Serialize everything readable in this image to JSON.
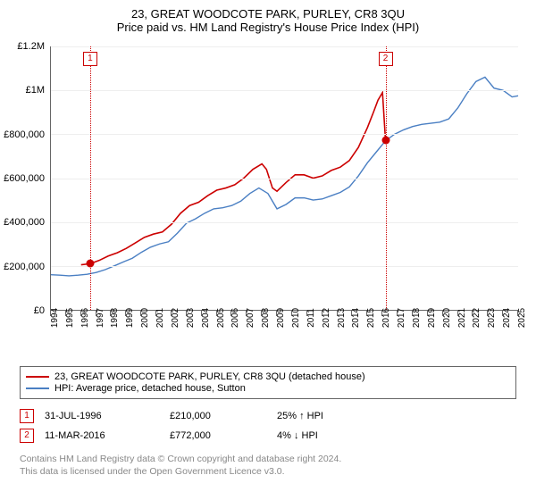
{
  "title": "23, GREAT WOODCOTE PARK, PURLEY, CR8 3QU",
  "subtitle": "Price paid vs. HM Land Registry's House Price Index (HPI)",
  "chart": {
    "type": "line",
    "background_color": "#ffffff",
    "grid_color": "#eeeeee",
    "axis_color": "#666666",
    "x": {
      "min": 1994,
      "max": 2025,
      "tick_step": 1,
      "label_fontsize": 10
    },
    "y": {
      "min": 0,
      "max": 1200000,
      "tick_step": 200000,
      "labels": [
        "£0",
        "£200,000",
        "£400,000",
        "£600,000",
        "£800,000",
        "£1M",
        "£1.2M"
      ],
      "label_fontsize": 11
    },
    "series": [
      {
        "name": "23, GREAT WOODCOTE PARK, PURLEY, CR8 3QU (detached house)",
        "color": "#cc0000",
        "line_width": 1.6,
        "points": [
          [
            1996.0,
            205000
          ],
          [
            1996.6,
            210000
          ],
          [
            1997.2,
            225000
          ],
          [
            1997.8,
            245000
          ],
          [
            1998.4,
            260000
          ],
          [
            1999.0,
            280000
          ],
          [
            1999.6,
            305000
          ],
          [
            2000.2,
            330000
          ],
          [
            2000.8,
            345000
          ],
          [
            2001.4,
            355000
          ],
          [
            2002.0,
            390000
          ],
          [
            2002.6,
            440000
          ],
          [
            2003.2,
            475000
          ],
          [
            2003.8,
            490000
          ],
          [
            2004.4,
            520000
          ],
          [
            2005.0,
            545000
          ],
          [
            2005.6,
            555000
          ],
          [
            2006.2,
            570000
          ],
          [
            2006.8,
            600000
          ],
          [
            2007.4,
            640000
          ],
          [
            2008.0,
            665000
          ],
          [
            2008.3,
            640000
          ],
          [
            2008.7,
            555000
          ],
          [
            2009.0,
            540000
          ],
          [
            2009.6,
            580000
          ],
          [
            2010.2,
            615000
          ],
          [
            2010.8,
            615000
          ],
          [
            2011.4,
            600000
          ],
          [
            2012.0,
            610000
          ],
          [
            2012.6,
            635000
          ],
          [
            2013.2,
            650000
          ],
          [
            2013.8,
            680000
          ],
          [
            2014.4,
            740000
          ],
          [
            2015.0,
            830000
          ],
          [
            2015.4,
            900000
          ],
          [
            2015.7,
            955000
          ],
          [
            2016.0,
            990000
          ],
          [
            2016.2,
            772000
          ]
        ]
      },
      {
        "name": "HPI: Average price, detached house, Sutton",
        "color": "#4a7fc3",
        "line_width": 1.4,
        "points": [
          [
            1994.0,
            160000
          ],
          [
            1994.6,
            158000
          ],
          [
            1995.2,
            155000
          ],
          [
            1995.8,
            158000
          ],
          [
            1996.4,
            162000
          ],
          [
            1997.0,
            170000
          ],
          [
            1997.6,
            183000
          ],
          [
            1998.2,
            200000
          ],
          [
            1998.8,
            218000
          ],
          [
            1999.4,
            235000
          ],
          [
            2000.0,
            262000
          ],
          [
            2000.6,
            285000
          ],
          [
            2001.2,
            300000
          ],
          [
            2001.8,
            310000
          ],
          [
            2002.4,
            350000
          ],
          [
            2003.0,
            395000
          ],
          [
            2003.6,
            415000
          ],
          [
            2004.2,
            440000
          ],
          [
            2004.8,
            460000
          ],
          [
            2005.4,
            465000
          ],
          [
            2006.0,
            475000
          ],
          [
            2006.6,
            495000
          ],
          [
            2007.2,
            530000
          ],
          [
            2007.8,
            555000
          ],
          [
            2008.4,
            530000
          ],
          [
            2009.0,
            460000
          ],
          [
            2009.6,
            480000
          ],
          [
            2010.2,
            510000
          ],
          [
            2010.8,
            510000
          ],
          [
            2011.4,
            500000
          ],
          [
            2012.0,
            505000
          ],
          [
            2012.6,
            520000
          ],
          [
            2013.2,
            535000
          ],
          [
            2013.8,
            560000
          ],
          [
            2014.4,
            610000
          ],
          [
            2015.0,
            670000
          ],
          [
            2015.6,
            720000
          ],
          [
            2016.2,
            770000
          ],
          [
            2016.8,
            800000
          ],
          [
            2017.4,
            820000
          ],
          [
            2018.0,
            835000
          ],
          [
            2018.6,
            845000
          ],
          [
            2019.2,
            850000
          ],
          [
            2019.8,
            855000
          ],
          [
            2020.4,
            870000
          ],
          [
            2021.0,
            920000
          ],
          [
            2021.6,
            985000
          ],
          [
            2022.2,
            1040000
          ],
          [
            2022.8,
            1060000
          ],
          [
            2023.4,
            1010000
          ],
          [
            2024.0,
            1000000
          ],
          [
            2024.6,
            970000
          ],
          [
            2025.0,
            975000
          ]
        ]
      }
    ],
    "ref_lines": [
      {
        "label": "1",
        "x": 1996.6,
        "color": "#cc0000"
      },
      {
        "label": "2",
        "x": 2016.2,
        "color": "#cc0000"
      }
    ],
    "data_points": [
      {
        "x": 1996.6,
        "y": 210000,
        "color": "#cc0000"
      },
      {
        "x": 2016.2,
        "y": 772000,
        "color": "#cc0000"
      }
    ]
  },
  "legend": {
    "items": [
      {
        "color": "#cc0000",
        "label": "23, GREAT WOODCOTE PARK, PURLEY, CR8 3QU (detached house)"
      },
      {
        "color": "#4a7fc3",
        "label": "HPI: Average price, detached house, Sutton"
      }
    ]
  },
  "transactions": [
    {
      "badge": "1",
      "badge_color": "#cc0000",
      "date": "31-JUL-1996",
      "price": "£210,000",
      "vs_hpi": "25% ↑ HPI"
    },
    {
      "badge": "2",
      "badge_color": "#cc0000",
      "date": "11-MAR-2016",
      "price": "£772,000",
      "vs_hpi": "4% ↓ HPI"
    }
  ],
  "copyright": {
    "line1": "Contains HM Land Registry data © Crown copyright and database right 2024.",
    "line2": "This data is licensed under the Open Government Licence v3.0."
  }
}
